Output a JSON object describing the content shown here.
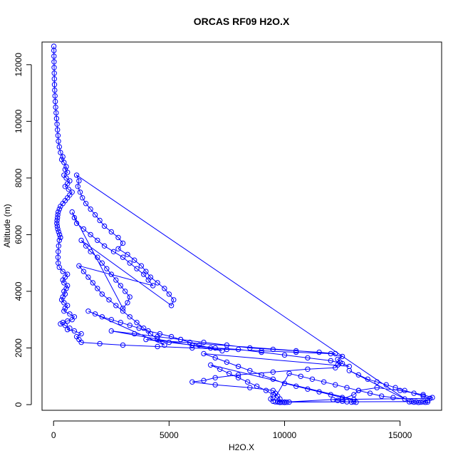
{
  "chart_data": {
    "type": "scatter",
    "title": "ORCAS RF09 H2O.X",
    "xlabel": "H2O.X",
    "ylabel": "Altitude (m)",
    "xlim": [
      -500,
      16800
    ],
    "ylim": [
      -200,
      12800
    ],
    "x_ticks": [
      0,
      5000,
      10000,
      15000
    ],
    "y_ticks": [
      0,
      2000,
      4000,
      6000,
      8000,
      10000,
      12000
    ],
    "grid": false,
    "legend": "none",
    "marker": "open-circle",
    "connect_points": true,
    "color": "#0000ff",
    "series": [
      {
        "points": [
          [
            12,
            12650
          ],
          [
            15,
            12500
          ],
          [
            18,
            12300
          ],
          [
            20,
            12100
          ],
          [
            25,
            11900
          ],
          [
            30,
            11700
          ],
          [
            35,
            11500
          ],
          [
            40,
            11300
          ],
          [
            50,
            11100
          ],
          [
            60,
            10900
          ],
          [
            75,
            10700
          ],
          [
            90,
            10500
          ],
          [
            110,
            10300
          ],
          [
            130,
            10100
          ],
          [
            150,
            9900
          ],
          [
            170,
            9700
          ],
          [
            190,
            9500
          ],
          [
            210,
            9300
          ],
          [
            250,
            9100
          ],
          [
            300,
            8900
          ],
          [
            400,
            8750
          ],
          [
            350,
            8650
          ],
          [
            450,
            8550
          ],
          [
            550,
            8400
          ],
          [
            500,
            8300
          ],
          [
            600,
            8200
          ],
          [
            450,
            8100
          ],
          [
            550,
            8000
          ],
          [
            700,
            7900
          ],
          [
            600,
            7800
          ],
          [
            500,
            7700
          ],
          [
            650,
            7600
          ],
          [
            800,
            7500
          ],
          [
            700,
            7400
          ],
          [
            600,
            7300
          ],
          [
            500,
            7200
          ],
          [
            400,
            7100
          ],
          [
            300,
            7000
          ],
          [
            250,
            6900
          ],
          [
            200,
            6800
          ],
          [
            180,
            6700
          ],
          [
            170,
            6600
          ],
          [
            150,
            6500
          ],
          [
            140,
            6400
          ],
          [
            160,
            6300
          ],
          [
            180,
            6200
          ],
          [
            220,
            6100
          ],
          [
            260,
            6000
          ],
          [
            300,
            5900
          ],
          [
            250,
            5800
          ],
          [
            220,
            5600
          ],
          [
            200,
            5400
          ],
          [
            190,
            5200
          ],
          [
            200,
            5000
          ],
          [
            250,
            4850
          ],
          [
            400,
            4700
          ],
          [
            600,
            4600
          ],
          [
            500,
            4500
          ],
          [
            400,
            4400
          ],
          [
            450,
            4300
          ],
          [
            600,
            4200
          ],
          [
            550,
            4100
          ],
          [
            450,
            4000
          ],
          [
            500,
            3900
          ],
          [
            400,
            3800
          ],
          [
            350,
            3700
          ],
          [
            450,
            3600
          ],
          [
            600,
            3500
          ],
          [
            500,
            3400
          ],
          [
            450,
            3300
          ],
          [
            700,
            3200
          ],
          [
            900,
            3100
          ],
          [
            800,
            3000
          ],
          [
            600,
            2950
          ],
          [
            400,
            2900
          ],
          [
            300,
            2850
          ],
          [
            500,
            2800
          ],
          [
            700,
            2700
          ],
          [
            600,
            2650
          ],
          [
            900,
            2600
          ],
          [
            1200,
            2500
          ],
          [
            1000,
            2400
          ],
          [
            1100,
            2300
          ],
          [
            1200,
            2200
          ],
          [
            2000,
            2150
          ],
          [
            3000,
            2100
          ],
          [
            4500,
            2050
          ],
          [
            6000,
            2000
          ],
          [
            7500,
            1950
          ],
          [
            9000,
            1900
          ],
          [
            10500,
            1850
          ],
          [
            12000,
            1800
          ],
          [
            12500,
            1700
          ],
          [
            12300,
            1600
          ],
          [
            12400,
            1500
          ],
          [
            12300,
            1400
          ],
          [
            12200,
            1300
          ],
          [
            11000,
            1250
          ],
          [
            9500,
            1150
          ],
          [
            8000,
            1050
          ],
          [
            7000,
            950
          ],
          [
            6500,
            850
          ],
          [
            6000,
            800
          ],
          [
            7000,
            700
          ],
          [
            8500,
            600
          ],
          [
            9500,
            500
          ],
          [
            9600,
            400
          ],
          [
            9700,
            300
          ],
          [
            9800,
            200
          ],
          [
            9700,
            100
          ],
          [
            9800,
            80
          ],
          [
            10000,
            90
          ],
          [
            12500,
            200
          ],
          [
            13000,
            350
          ],
          [
            13200,
            500
          ],
          [
            14000,
            600
          ],
          [
            15000,
            500
          ],
          [
            16000,
            350
          ],
          [
            16400,
            250
          ],
          [
            16200,
            150
          ],
          [
            16000,
            100
          ],
          [
            15800,
            80
          ],
          [
            15600,
            90
          ],
          [
            15400,
            100
          ],
          [
            1000,
            8100
          ],
          [
            1100,
            7900
          ],
          [
            1050,
            7700
          ],
          [
            1150,
            7500
          ],
          [
            1250,
            7300
          ],
          [
            1400,
            7100
          ],
          [
            1600,
            6900
          ],
          [
            1800,
            6700
          ],
          [
            2000,
            6500
          ],
          [
            2200,
            6300
          ],
          [
            2500,
            6100
          ],
          [
            2800,
            5900
          ],
          [
            3000,
            5700
          ],
          [
            2800,
            5500
          ],
          [
            3200,
            5300
          ],
          [
            3500,
            5100
          ],
          [
            3800,
            4900
          ],
          [
            4000,
            4700
          ],
          [
            4200,
            4500
          ],
          [
            4500,
            4300
          ],
          [
            4800,
            4100
          ],
          [
            5000,
            3900
          ],
          [
            5200,
            3700
          ],
          [
            5100,
            3500
          ],
          [
            1200,
            5800
          ],
          [
            1400,
            5600
          ],
          [
            1600,
            5400
          ],
          [
            1900,
            5200
          ],
          [
            2100,
            5000
          ],
          [
            2300,
            4800
          ],
          [
            2500,
            4600
          ],
          [
            2700,
            4400
          ],
          [
            2900,
            4200
          ],
          [
            3100,
            4000
          ],
          [
            3300,
            3800
          ],
          [
            3200,
            3600
          ],
          [
            3000,
            3400
          ],
          [
            800,
            6800
          ],
          [
            900,
            6600
          ],
          [
            1000,
            6400
          ],
          [
            1300,
            6200
          ],
          [
            1600,
            6000
          ],
          [
            1900,
            5800
          ],
          [
            2200,
            5600
          ],
          [
            2600,
            5400
          ],
          [
            3000,
            5200
          ],
          [
            3300,
            5000
          ],
          [
            3600,
            4800
          ],
          [
            3900,
            4600
          ],
          [
            4100,
            4400
          ],
          [
            4300,
            4200
          ],
          [
            1100,
            4900
          ],
          [
            1300,
            4700
          ],
          [
            1500,
            4500
          ],
          [
            1700,
            4300
          ],
          [
            1900,
            4100
          ],
          [
            2100,
            3900
          ],
          [
            2400,
            3700
          ],
          [
            2700,
            3500
          ],
          [
            3000,
            3300
          ],
          [
            3300,
            3100
          ],
          [
            3600,
            2900
          ],
          [
            3900,
            2700
          ],
          [
            4200,
            2500
          ],
          [
            4500,
            2300
          ],
          [
            4800,
            2100
          ],
          [
            1500,
            3300
          ],
          [
            1800,
            3200
          ],
          [
            2100,
            3100
          ],
          [
            2500,
            3000
          ],
          [
            2900,
            2900
          ],
          [
            3300,
            2800
          ],
          [
            3700,
            2700
          ],
          [
            4100,
            2600
          ],
          [
            4600,
            2500
          ],
          [
            5100,
            2400
          ],
          [
            5500,
            2300
          ],
          [
            5900,
            2200
          ],
          [
            6300,
            2100
          ],
          [
            6800,
            2000
          ],
          [
            7300,
            1900
          ],
          [
            2500,
            2600
          ],
          [
            3500,
            2500
          ],
          [
            4500,
            2400
          ],
          [
            5500,
            2300
          ],
          [
            6500,
            2200
          ],
          [
            7500,
            2100
          ],
          [
            8500,
            2000
          ],
          [
            9500,
            1950
          ],
          [
            10500,
            1900
          ],
          [
            11500,
            1850
          ],
          [
            12200,
            1800
          ],
          [
            4000,
            2300
          ],
          [
            5000,
            2200
          ],
          [
            6000,
            2100
          ],
          [
            7000,
            2000
          ],
          [
            8000,
            1950
          ],
          [
            9000,
            1850
          ],
          [
            10000,
            1750
          ],
          [
            11000,
            1650
          ],
          [
            12000,
            1550
          ],
          [
            12500,
            1450
          ],
          [
            12800,
            1350
          ],
          [
            6500,
            1800
          ],
          [
            7000,
            1650
          ],
          [
            7500,
            1500
          ],
          [
            8000,
            1350
          ],
          [
            8500,
            1200
          ],
          [
            9000,
            1050
          ],
          [
            9500,
            900
          ],
          [
            10000,
            750
          ],
          [
            10500,
            650
          ],
          [
            11000,
            550
          ],
          [
            11500,
            450
          ],
          [
            12000,
            350
          ],
          [
            12500,
            250
          ],
          [
            13000,
            180
          ],
          [
            6800,
            1400
          ],
          [
            7200,
            1250
          ],
          [
            7600,
            1100
          ],
          [
            8000,
            950
          ],
          [
            8400,
            800
          ],
          [
            8800,
            650
          ],
          [
            9200,
            500
          ],
          [
            9500,
            350
          ],
          [
            9400,
            200
          ],
          [
            9500,
            120
          ],
          [
            10200,
            1100
          ],
          [
            10700,
            1000
          ],
          [
            11200,
            900
          ],
          [
            11700,
            800
          ],
          [
            12200,
            700
          ],
          [
            12700,
            600
          ],
          [
            13200,
            500
          ],
          [
            13700,
            400
          ],
          [
            14200,
            300
          ],
          [
            14700,
            250
          ],
          [
            15200,
            200
          ],
          [
            12800,
            1200
          ],
          [
            13200,
            1050
          ],
          [
            13600,
            900
          ],
          [
            14000,
            800
          ],
          [
            14400,
            700
          ],
          [
            14800,
            600
          ],
          [
            15200,
            500
          ],
          [
            15600,
            400
          ],
          [
            16000,
            300
          ],
          [
            16300,
            220
          ],
          [
            12100,
            180
          ],
          [
            12300,
            150
          ],
          [
            12500,
            120
          ],
          [
            12700,
            100
          ],
          [
            12900,
            90
          ],
          [
            13100,
            85
          ],
          [
            13000,
            100
          ],
          [
            9600,
            100
          ],
          [
            9700,
            95
          ],
          [
            9800,
            90
          ],
          [
            9900,
            85
          ],
          [
            10000,
            80
          ],
          [
            10100,
            85
          ],
          [
            10200,
            90
          ],
          [
            15500,
            110
          ],
          [
            15700,
            100
          ],
          [
            15900,
            90
          ],
          [
            16100,
            85
          ],
          [
            16200,
            95
          ]
        ]
      }
    ]
  }
}
